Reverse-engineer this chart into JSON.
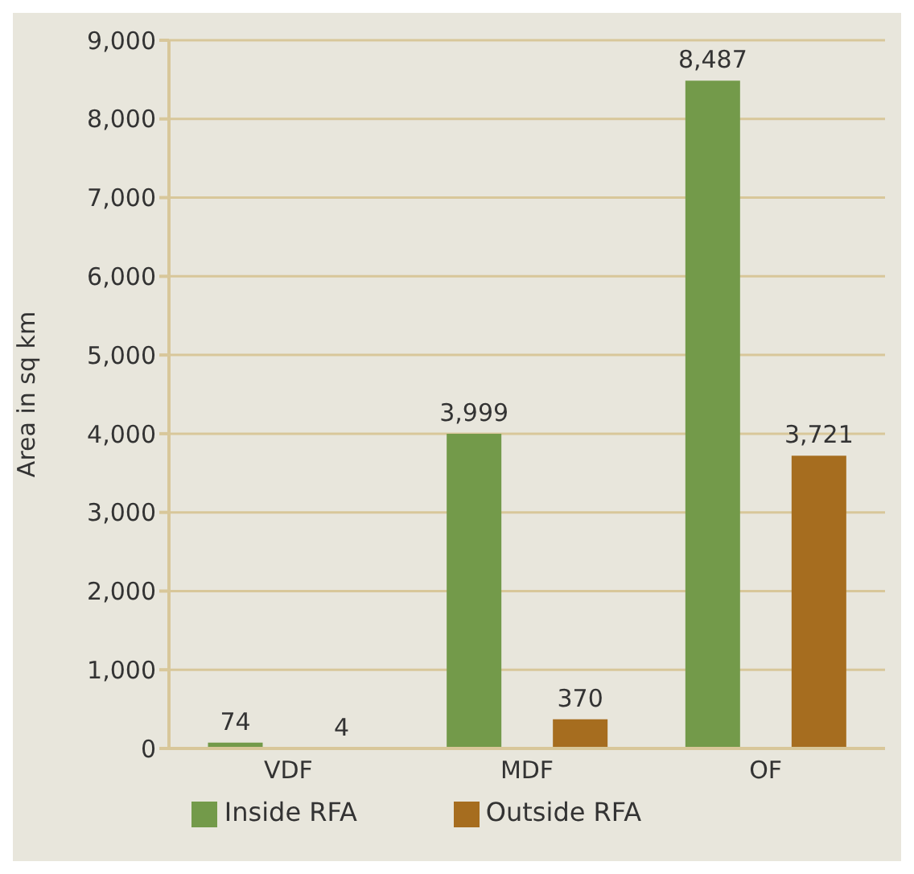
{
  "chart_data": {
    "type": "bar",
    "ylabel": "Area in sq km",
    "categories": [
      "VDF",
      "MDF",
      "OF"
    ],
    "series": [
      {
        "name": "Inside RFA",
        "color": "#739a4a",
        "values": [
          74,
          3999,
          8487
        ],
        "value_labels": [
          "74",
          "3,999",
          "8,487"
        ]
      },
      {
        "name": "Outside RFA",
        "color": "#a66d1f",
        "values": [
          4,
          370,
          3721
        ],
        "value_labels": [
          "4",
          "370",
          "3,721"
        ]
      }
    ],
    "ylim": [
      0,
      9000
    ],
    "yticks": [
      0,
      {
        "value": 1000,
        "label": "1,000"
      },
      {
        "value": 2000,
        "label": "2,000"
      },
      {
        "value": 3000,
        "label": "3,000"
      },
      {
        "value": 4000,
        "label": "4,000"
      },
      {
        "value": 5000,
        "label": "5,000"
      },
      {
        "value": 6000,
        "label": "6,000"
      },
      {
        "value": 7000,
        "label": "7,000"
      },
      {
        "value": 8000,
        "label": "8,000"
      },
      {
        "value": 9000,
        "label": "9,000"
      }
    ],
    "grid": "y",
    "legend": "bottom"
  }
}
